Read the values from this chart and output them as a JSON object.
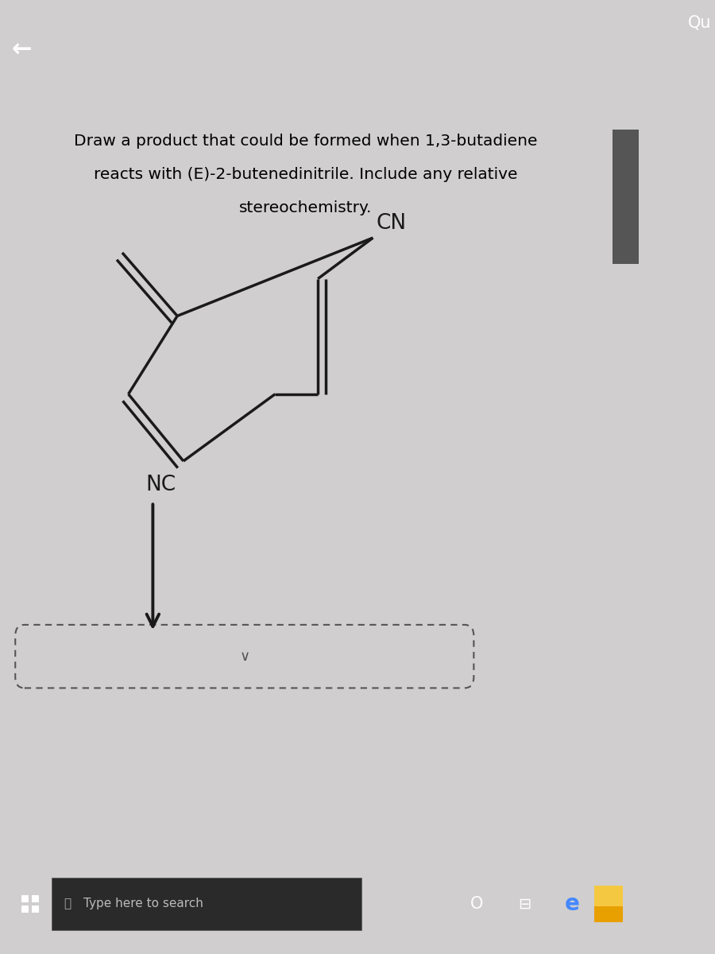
{
  "title_line1": "Draw a product that could be formed when 1,3-butadiene",
  "title_line2": "reacts with (E)-2-butenedinitrile. Include any relative",
  "title_line3": "stereochemistry.",
  "header_color": "#c0392b",
  "bg_color": "#d0cece",
  "content_bg": "#d5d3d0",
  "taskbar_bg": "#111111",
  "title_fontsize": 14.5,
  "label_CN": "CN",
  "label_NC": "NC",
  "molecule_color": "#1a1a1a",
  "lw": 2.5,
  "db_off": 0.1
}
